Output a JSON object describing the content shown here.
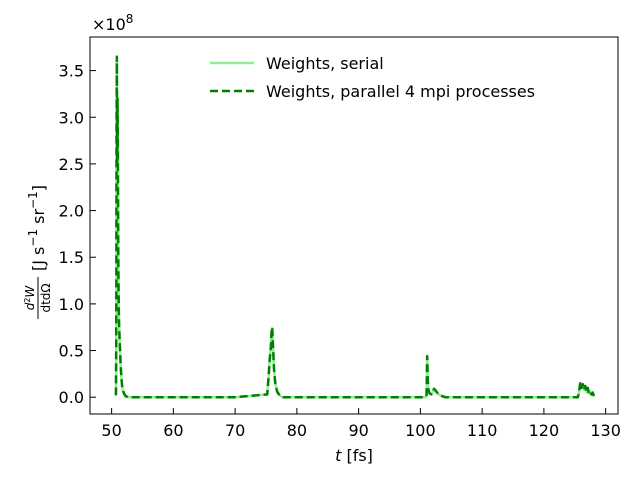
{
  "chart_data": {
    "type": "line",
    "title": "",
    "xlabel": "t [fs]",
    "ylabel": "d²W/dtdΩ [J s⁻¹ sr⁻¹]",
    "y_scale_label": "×10^8",
    "xlim": [
      46.5,
      132
    ],
    "ylim": [
      -0.18,
      3.86
    ],
    "y_unit_multiplier": 100000000,
    "xticks": [
      50,
      60,
      70,
      80,
      90,
      100,
      110,
      120,
      130
    ],
    "yticks": [
      0.0,
      0.5,
      1.0,
      1.5,
      2.0,
      2.5,
      3.0,
      3.5
    ],
    "xtick_labels": [
      "50",
      "60",
      "70",
      "80",
      "90",
      "100",
      "110",
      "120",
      "130"
    ],
    "ytick_labels": [
      "0.0",
      "0.5",
      "1.0",
      "1.5",
      "2.0",
      "2.5",
      "3.0",
      "3.5"
    ],
    "grid": false,
    "legend_position": "top-right",
    "x": [
      50.7,
      50.75,
      50.8,
      50.85,
      50.9,
      50.95,
      51.0,
      51.05,
      51.1,
      51.15,
      51.2,
      51.3,
      51.4,
      51.5,
      51.6,
      51.7,
      51.8,
      52.0,
      52.3,
      52.7,
      53.0,
      60,
      70,
      75.2,
      75.4,
      75.6,
      75.8,
      75.9,
      76.0,
      76.1,
      76.2,
      76.3,
      76.5,
      76.8,
      77.2,
      77.6,
      78.0,
      85,
      95,
      100.8,
      101.0,
      101.1,
      101.2,
      101.3,
      101.5,
      101.8,
      102.0,
      102.2,
      102.5,
      102.8,
      103.2,
      103.6,
      104.0,
      110,
      120,
      125.5,
      125.7,
      125.9,
      126.1,
      126.3,
      126.5,
      126.7,
      126.9,
      127.1,
      127.3,
      127.5,
      127.7,
      127.9,
      128.1
    ],
    "series": [
      {
        "name": "Weights, serial",
        "color": "#90ee90",
        "style": "solid",
        "values": [
          0.02,
          0.6,
          2.9,
          3.6,
          2.5,
          3.2,
          2.8,
          2.0,
          1.3,
          1.0,
          0.8,
          0.6,
          0.45,
          0.3,
          0.2,
          0.12,
          0.08,
          0.04,
          0.01,
          0.0,
          0.0,
          0.0,
          0.0,
          0.03,
          0.2,
          0.4,
          0.55,
          0.7,
          0.74,
          0.6,
          0.45,
          0.3,
          0.15,
          0.06,
          0.02,
          0.0,
          0.0,
          0.0,
          0.0,
          0.0,
          0.02,
          0.42,
          0.18,
          0.08,
          0.04,
          0.03,
          0.05,
          0.09,
          0.07,
          0.04,
          0.02,
          0.01,
          0.0,
          0.0,
          0.0,
          0.0,
          0.06,
          0.15,
          0.1,
          0.14,
          0.08,
          0.12,
          0.05,
          0.1,
          0.04,
          0.06,
          0.03,
          0.05,
          0.01
        ]
      },
      {
        "name": "Weights,  parallel 4 mpi processes",
        "color": "#008000",
        "style": "dashed",
        "values": [
          0.02,
          0.6,
          2.9,
          3.65,
          2.5,
          3.2,
          2.8,
          2.0,
          1.3,
          1.0,
          0.8,
          0.6,
          0.45,
          0.3,
          0.2,
          0.12,
          0.08,
          0.04,
          0.01,
          0.0,
          0.0,
          0.0,
          0.0,
          0.03,
          0.2,
          0.4,
          0.55,
          0.7,
          0.75,
          0.6,
          0.45,
          0.3,
          0.15,
          0.06,
          0.02,
          0.0,
          0.0,
          0.0,
          0.0,
          0.0,
          0.02,
          0.44,
          0.18,
          0.08,
          0.04,
          0.03,
          0.05,
          0.09,
          0.07,
          0.04,
          0.02,
          0.01,
          0.0,
          0.0,
          0.0,
          0.0,
          0.06,
          0.16,
          0.1,
          0.14,
          0.08,
          0.12,
          0.05,
          0.1,
          0.04,
          0.06,
          0.03,
          0.05,
          0.01
        ]
      }
    ]
  }
}
